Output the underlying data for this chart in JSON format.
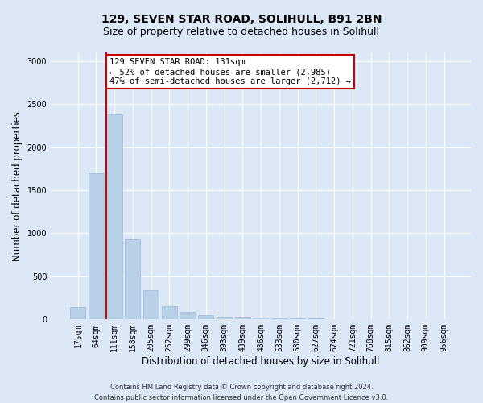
{
  "title_line1": "129, SEVEN STAR ROAD, SOLIHULL, B91 2BN",
  "title_line2": "Size of property relative to detached houses in Solihull",
  "xlabel": "Distribution of detached houses by size in Solihull",
  "ylabel": "Number of detached properties",
  "footnote": "Contains HM Land Registry data © Crown copyright and database right 2024.\nContains public sector information licensed under the Open Government Licence v3.0.",
  "bar_labels": [
    "17sqm",
    "64sqm",
    "111sqm",
    "158sqm",
    "205sqm",
    "252sqm",
    "299sqm",
    "346sqm",
    "393sqm",
    "439sqm",
    "486sqm",
    "533sqm",
    "580sqm",
    "627sqm",
    "674sqm",
    "721sqm",
    "768sqm",
    "815sqm",
    "862sqm",
    "909sqm",
    "956sqm"
  ],
  "bar_values": [
    140,
    1700,
    2380,
    930,
    340,
    155,
    85,
    50,
    35,
    28,
    20,
    15,
    10,
    8,
    5,
    4,
    3,
    2,
    1,
    1,
    1
  ],
  "bar_color": "#b8d0e8",
  "bar_edge_color": "#9ab8d8",
  "highlight_bar_index": 2,
  "highlight_line_color": "#cc0000",
  "annotation_text": "129 SEVEN STAR ROAD: 131sqm\n← 52% of detached houses are smaller (2,985)\n47% of semi-detached houses are larger (2,712) →",
  "annotation_box_facecolor": "#ffffff",
  "annotation_box_edgecolor": "#cc0000",
  "ylim": [
    0,
    3100
  ],
  "yticks": [
    0,
    500,
    1000,
    1500,
    2000,
    2500,
    3000
  ],
  "bg_color": "#dce8f5",
  "plot_bg_color": "#dce8f5",
  "grid_color": "#ffffff",
  "title_fontsize": 10,
  "subtitle_fontsize": 9,
  "tick_fontsize": 7,
  "label_fontsize": 8.5,
  "footnote_fontsize": 6,
  "annotation_fontsize": 7.5
}
